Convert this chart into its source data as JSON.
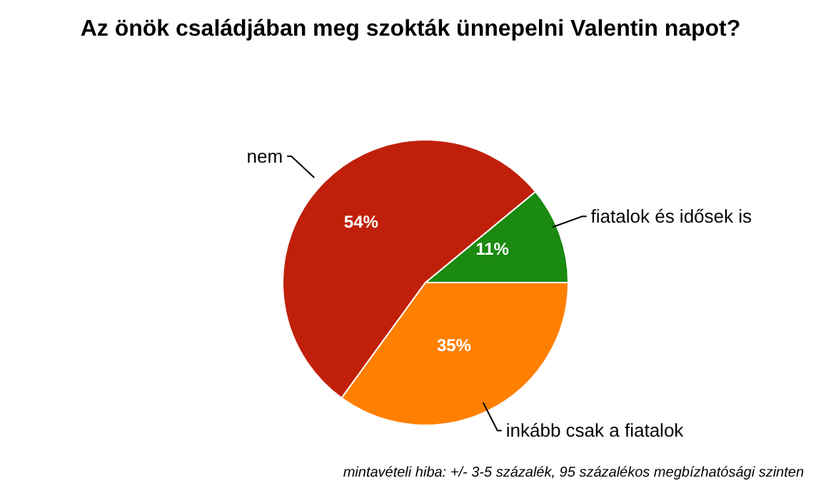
{
  "chart_data": {
    "type": "pie",
    "title": "Az önök családjában meg szokták ünnepelni Valentin napot?",
    "categories": [
      "fiatalok és idősek is",
      "nem",
      "inkább csak a fiatalok"
    ],
    "values": [
      11,
      54,
      35
    ],
    "colors": [
      "#1a8a10",
      "#c0200a",
      "#ff8000"
    ],
    "value_labels": [
      "11%",
      "54%",
      "35%"
    ],
    "annotations": [
      "mintavételi hiba: +/- 3-5 százalék, 95 százalékos megbízhatósági szinten"
    ],
    "legend": false
  }
}
